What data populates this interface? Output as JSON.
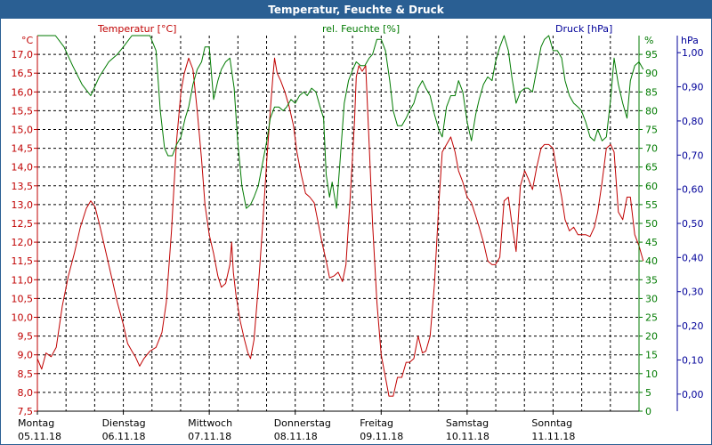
{
  "window": {
    "title": "Temperatur, Feuchte & Druck"
  },
  "colors": {
    "temperature": "#c00000",
    "humidity": "#007a00",
    "pressure": "#000099",
    "grid": "#000000",
    "title_bar": "#2a5f93"
  },
  "chart_data": {
    "type": "line",
    "title": "Temperatur, Feuchte & Druck",
    "grid": true,
    "x_axis": {
      "range": [
        "05.11.18 00:00",
        "12.11.18 00:00"
      ],
      "days": [
        {
          "day": "Montag",
          "date": "05.11.18"
        },
        {
          "day": "Dienstag",
          "date": "06.11.18"
        },
        {
          "day": "Mittwoch",
          "date": "07.11.18"
        },
        {
          "day": "Donnerstag",
          "date": "08.11.18"
        },
        {
          "day": "Freitag",
          "date": "09.11.18"
        },
        {
          "day": "Samstag",
          "date": "10.11.18"
        },
        {
          "day": "Sonntag",
          "date": "11.11.18"
        }
      ]
    },
    "axes": {
      "temperature": {
        "label": "Temperatur [°C]",
        "unit": "°C",
        "ylim": [
          7.5,
          17.5
        ],
        "side": "left",
        "ticks": [
          "7,5",
          "8,0",
          "8,5",
          "9,0",
          "9,5",
          "10,0",
          "10,5",
          "11,0",
          "11,5",
          "12,0",
          "12,5",
          "13,0",
          "13,5",
          "14,0",
          "14,5",
          "15,0",
          "15,5",
          "16,0",
          "16,5",
          "17,0"
        ]
      },
      "humidity": {
        "label": "rel. Feuchte [%]",
        "unit": "%",
        "ylim": [
          0,
          100
        ],
        "side": "right",
        "ticks": [
          "0",
          "5",
          "10",
          "15",
          "20",
          "25",
          "30",
          "35",
          "40",
          "45",
          "50",
          "55",
          "60",
          "65",
          "70",
          "75",
          "80",
          "85",
          "90",
          "95"
        ]
      },
      "pressure": {
        "label": "Druck [hPa]",
        "unit": "hPa",
        "ylim": [
          -0.05,
          1.05
        ],
        "side": "right",
        "ticks": [
          "0,00",
          "0,10",
          "0,20",
          "0,30",
          "0,40",
          "0,50",
          "0,60",
          "0,70",
          "0,80",
          "0,90",
          "1,00"
        ]
      }
    },
    "series": [
      {
        "name": "Temperatur [°C]",
        "axis": "temperature",
        "points": [
          [
            0.0,
            8.9
          ],
          [
            0.05,
            8.62
          ],
          [
            0.1,
            9.05
          ],
          [
            0.16,
            8.95
          ],
          [
            0.22,
            9.2
          ],
          [
            0.29,
            10.3
          ],
          [
            0.36,
            11.1
          ],
          [
            0.43,
            11.7
          ],
          [
            0.5,
            12.4
          ],
          [
            0.57,
            12.9
          ],
          [
            0.62,
            13.1
          ],
          [
            0.67,
            12.95
          ],
          [
            0.72,
            12.5
          ],
          [
            0.79,
            11.8
          ],
          [
            0.86,
            11.1
          ],
          [
            0.93,
            10.4
          ],
          [
            1.0,
            9.8
          ],
          [
            1.05,
            9.3
          ],
          [
            1.1,
            9.1
          ],
          [
            1.14,
            8.95
          ],
          [
            1.19,
            8.7
          ],
          [
            1.24,
            8.9
          ],
          [
            1.31,
            9.1
          ],
          [
            1.38,
            9.2
          ],
          [
            1.45,
            9.6
          ],
          [
            1.5,
            10.4
          ],
          [
            1.56,
            12.3
          ],
          [
            1.62,
            14.7
          ],
          [
            1.67,
            16.0
          ],
          [
            1.71,
            16.5
          ],
          [
            1.76,
            16.9
          ],
          [
            1.81,
            16.6
          ],
          [
            1.86,
            15.5
          ],
          [
            1.91,
            14.2
          ],
          [
            1.95,
            13.0
          ],
          [
            2.0,
            12.2
          ],
          [
            2.05,
            11.7
          ],
          [
            2.1,
            11.1
          ],
          [
            2.14,
            10.8
          ],
          [
            2.19,
            10.9
          ],
          [
            2.24,
            11.4
          ],
          [
            2.26,
            12.0
          ],
          [
            2.28,
            11.2
          ],
          [
            2.31,
            10.6
          ],
          [
            2.36,
            9.9
          ],
          [
            2.41,
            9.4
          ],
          [
            2.45,
            9.05
          ],
          [
            2.48,
            8.9
          ],
          [
            2.52,
            9.4
          ],
          [
            2.57,
            10.8
          ],
          [
            2.62,
            12.4
          ],
          [
            2.67,
            14.2
          ],
          [
            2.71,
            15.5
          ],
          [
            2.74,
            16.4
          ],
          [
            2.76,
            16.9
          ],
          [
            2.79,
            16.5
          ],
          [
            2.83,
            16.3
          ],
          [
            2.88,
            16.0
          ],
          [
            2.93,
            15.6
          ],
          [
            2.98,
            15.1
          ],
          [
            3.02,
            14.4
          ],
          [
            3.07,
            13.8
          ],
          [
            3.12,
            13.3
          ],
          [
            3.17,
            13.2
          ],
          [
            3.22,
            13.05
          ],
          [
            3.26,
            12.6
          ],
          [
            3.31,
            12.0
          ],
          [
            3.36,
            11.5
          ],
          [
            3.4,
            11.05
          ],
          [
            3.45,
            11.1
          ],
          [
            3.5,
            11.2
          ],
          [
            3.55,
            10.95
          ],
          [
            3.59,
            11.4
          ],
          [
            3.64,
            13.2
          ],
          [
            3.69,
            15.2
          ],
          [
            3.71,
            16.4
          ],
          [
            3.74,
            16.7
          ],
          [
            3.78,
            16.55
          ],
          [
            3.82,
            16.7
          ],
          [
            3.86,
            14.6
          ],
          [
            3.9,
            12.5
          ],
          [
            3.95,
            10.4
          ],
          [
            4.0,
            9.0
          ],
          [
            4.05,
            8.4
          ],
          [
            4.09,
            7.9
          ],
          [
            4.14,
            7.9
          ],
          [
            4.19,
            8.4
          ],
          [
            4.24,
            8.4
          ],
          [
            4.29,
            8.8
          ],
          [
            4.33,
            8.8
          ],
          [
            4.38,
            8.9
          ],
          [
            4.43,
            9.5
          ],
          [
            4.48,
            9.05
          ],
          [
            4.52,
            9.1
          ],
          [
            4.57,
            9.5
          ],
          [
            4.62,
            10.9
          ],
          [
            4.67,
            13.0
          ],
          [
            4.71,
            14.4
          ],
          [
            4.76,
            14.6
          ],
          [
            4.81,
            14.8
          ],
          [
            4.86,
            14.4
          ],
          [
            4.9,
            13.9
          ],
          [
            4.95,
            13.6
          ],
          [
            5.0,
            13.2
          ],
          [
            5.05,
            13.05
          ],
          [
            5.1,
            12.7
          ],
          [
            5.14,
            12.4
          ],
          [
            5.19,
            12.0
          ],
          [
            5.24,
            11.5
          ],
          [
            5.29,
            11.4
          ],
          [
            5.33,
            11.4
          ],
          [
            5.38,
            11.6
          ],
          [
            5.43,
            13.1
          ],
          [
            5.48,
            13.2
          ],
          [
            5.52,
            12.5
          ],
          [
            5.57,
            11.75
          ],
          [
            5.62,
            13.5
          ],
          [
            5.67,
            13.9
          ],
          [
            5.71,
            13.7
          ],
          [
            5.76,
            13.4
          ],
          [
            5.81,
            14.0
          ],
          [
            5.86,
            14.5
          ],
          [
            5.9,
            14.6
          ],
          [
            5.95,
            14.6
          ],
          [
            6.0,
            14.5
          ],
          [
            6.05,
            13.8
          ],
          [
            6.1,
            13.2
          ],
          [
            6.14,
            12.6
          ],
          [
            6.19,
            12.3
          ],
          [
            6.24,
            12.4
          ],
          [
            6.29,
            12.2
          ],
          [
            6.33,
            12.2
          ],
          [
            6.38,
            12.2
          ],
          [
            6.43,
            12.15
          ],
          [
            6.48,
            12.4
          ],
          [
            6.52,
            12.8
          ],
          [
            6.57,
            13.6
          ],
          [
            6.62,
            14.5
          ],
          [
            6.67,
            14.6
          ],
          [
            6.71,
            14.4
          ],
          [
            6.76,
            12.8
          ],
          [
            6.81,
            12.6
          ],
          [
            6.86,
            13.2
          ],
          [
            6.9,
            13.2
          ],
          [
            6.95,
            12.2
          ],
          [
            7.0,
            11.9
          ],
          [
            7.05,
            11.5
          ]
        ]
      },
      {
        "name": "rel. Feuchte [%]",
        "axis": "humidity",
        "points": [
          [
            0.0,
            100
          ],
          [
            0.1,
            100
          ],
          [
            0.21,
            100
          ],
          [
            0.31,
            97
          ],
          [
            0.41,
            92
          ],
          [
            0.52,
            87
          ],
          [
            0.62,
            84
          ],
          [
            0.72,
            89
          ],
          [
            0.83,
            93
          ],
          [
            0.93,
            95
          ],
          [
            1.0,
            97
          ],
          [
            1.1,
            100
          ],
          [
            1.21,
            100
          ],
          [
            1.31,
            100
          ],
          [
            1.38,
            96
          ],
          [
            1.43,
            80
          ],
          [
            1.48,
            70
          ],
          [
            1.52,
            68
          ],
          [
            1.57,
            68
          ],
          [
            1.62,
            71
          ],
          [
            1.67,
            73
          ],
          [
            1.72,
            78
          ],
          [
            1.76,
            81
          ],
          [
            1.81,
            87
          ],
          [
            1.86,
            91
          ],
          [
            1.91,
            93
          ],
          [
            1.95,
            97
          ],
          [
            2.0,
            97
          ],
          [
            2.05,
            83
          ],
          [
            2.1,
            88
          ],
          [
            2.14,
            91
          ],
          [
            2.19,
            93
          ],
          [
            2.24,
            94
          ],
          [
            2.29,
            86
          ],
          [
            2.33,
            72
          ],
          [
            2.38,
            60
          ],
          [
            2.43,
            54
          ],
          [
            2.48,
            55
          ],
          [
            2.52,
            57
          ],
          [
            2.57,
            60
          ],
          [
            2.62,
            66
          ],
          [
            2.67,
            72
          ],
          [
            2.71,
            78
          ],
          [
            2.76,
            81
          ],
          [
            2.81,
            81
          ],
          [
            2.86,
            80
          ],
          [
            2.9,
            81
          ],
          [
            2.95,
            83
          ],
          [
            3.0,
            82
          ],
          [
            3.05,
            84
          ],
          [
            3.1,
            85
          ],
          [
            3.14,
            84
          ],
          [
            3.19,
            86
          ],
          [
            3.24,
            85
          ],
          [
            3.29,
            81
          ],
          [
            3.33,
            78
          ],
          [
            3.36,
            63
          ],
          [
            3.4,
            57
          ],
          [
            3.43,
            61
          ],
          [
            3.48,
            54
          ],
          [
            3.52,
            66
          ],
          [
            3.57,
            82
          ],
          [
            3.62,
            88
          ],
          [
            3.67,
            91
          ],
          [
            3.71,
            93
          ],
          [
            3.76,
            92
          ],
          [
            3.81,
            92
          ],
          [
            3.86,
            94
          ],
          [
            3.9,
            95
          ],
          [
            3.95,
            99
          ],
          [
            4.0,
            99
          ],
          [
            4.05,
            96
          ],
          [
            4.1,
            88
          ],
          [
            4.14,
            80
          ],
          [
            4.19,
            76
          ],
          [
            4.24,
            76
          ],
          [
            4.29,
            78
          ],
          [
            4.33,
            80
          ],
          [
            4.38,
            82
          ],
          [
            4.43,
            86
          ],
          [
            4.48,
            88
          ],
          [
            4.52,
            86
          ],
          [
            4.57,
            84
          ],
          [
            4.62,
            79
          ],
          [
            4.67,
            75
          ],
          [
            4.71,
            73
          ],
          [
            4.76,
            81
          ],
          [
            4.81,
            84
          ],
          [
            4.86,
            84
          ],
          [
            4.9,
            88
          ],
          [
            4.95,
            85
          ],
          [
            5.0,
            77
          ],
          [
            5.05,
            72
          ],
          [
            5.1,
            79
          ],
          [
            5.14,
            83
          ],
          [
            5.19,
            87
          ],
          [
            5.24,
            89
          ],
          [
            5.29,
            88
          ],
          [
            5.33,
            93
          ],
          [
            5.38,
            97
          ],
          [
            5.43,
            100
          ],
          [
            5.48,
            96
          ],
          [
            5.52,
            89
          ],
          [
            5.57,
            82
          ],
          [
            5.62,
            85
          ],
          [
            5.67,
            86
          ],
          [
            5.71,
            86
          ],
          [
            5.76,
            85
          ],
          [
            5.81,
            91
          ],
          [
            5.86,
            97
          ],
          [
            5.9,
            99
          ],
          [
            5.95,
            100
          ],
          [
            6.0,
            96
          ],
          [
            6.05,
            96
          ],
          [
            6.1,
            94
          ],
          [
            6.14,
            88
          ],
          [
            6.19,
            84
          ],
          [
            6.24,
            82
          ],
          [
            6.29,
            81
          ],
          [
            6.33,
            80
          ],
          [
            6.38,
            77
          ],
          [
            6.43,
            73
          ],
          [
            6.48,
            72
          ],
          [
            6.52,
            75
          ],
          [
            6.57,
            72
          ],
          [
            6.62,
            73
          ],
          [
            6.67,
            83
          ],
          [
            6.71,
            94
          ],
          [
            6.76,
            87
          ],
          [
            6.81,
            82
          ],
          [
            6.86,
            78
          ],
          [
            6.9,
            88
          ],
          [
            6.95,
            92
          ],
          [
            7.0,
            93
          ],
          [
            7.05,
            91
          ]
        ]
      }
    ]
  }
}
